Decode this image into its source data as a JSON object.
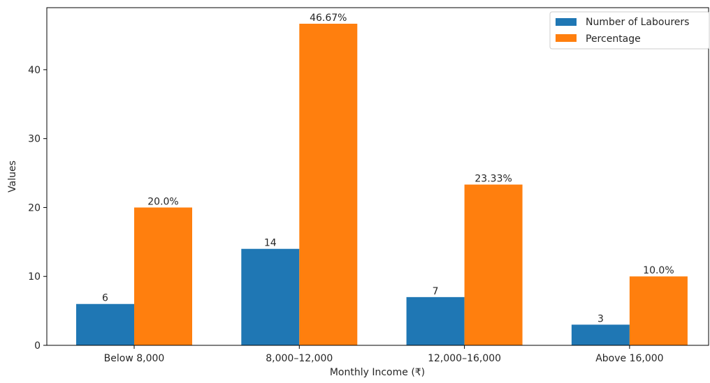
{
  "chart_data": {
    "type": "bar",
    "title": "",
    "xlabel": "Monthly Income (₹)",
    "ylabel": "Values",
    "categories": [
      "Below 8,000",
      "8,000–12,000",
      "12,000–16,000",
      "Above 16,000"
    ],
    "series": [
      {
        "name": "Number of Labourers",
        "values": [
          6,
          14,
          7,
          3
        ],
        "labels": [
          "6",
          "14",
          "7",
          "3"
        ],
        "color": "#1f77b4"
      },
      {
        "name": "Percentage",
        "values": [
          20.0,
          46.67,
          23.33,
          10.0
        ],
        "labels": [
          "20.0%",
          "46.67%",
          "23.33%",
          "10.0%"
        ],
        "color": "#ff7f0e"
      }
    ],
    "ylim": [
      0,
      49
    ],
    "yticks": [
      0,
      10,
      20,
      30,
      40
    ],
    "grid": false,
    "legend_position": "top-right"
  }
}
